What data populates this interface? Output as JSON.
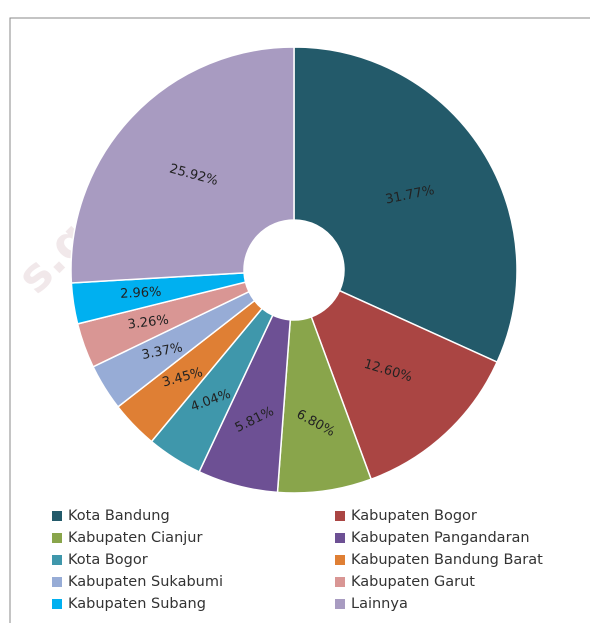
{
  "watermark": "s.go.id",
  "chart_data": {
    "type": "donut",
    "categories": [
      "Kota Bandung",
      "Kabupaten Bogor",
      "Kabupaten Cianjur",
      "Kabupaten Pangandaran",
      "Kota Bogor",
      "Kabupaten Bandung Barat",
      "Kabupaten Sukabumi",
      "Kabupaten Garut",
      "Kabupaten Subang",
      "Lainnya"
    ],
    "values": [
      31.77,
      12.6,
      6.8,
      5.81,
      4.04,
      3.45,
      3.37,
      3.26,
      2.96,
      25.92
    ],
    "value_labels": [
      "31.77%",
      "12.60%",
      "6.80%",
      "5.81%",
      "4.04%",
      "3.45%",
      "3.37%",
      "3.26%",
      "2.96%",
      "25.92%"
    ],
    "colors": [
      "#235a6a",
      "#aa4543",
      "#89a54b",
      "#6d5094",
      "#3f97ab",
      "#df7f34",
      "#97acd6",
      "#d99694",
      "#00b0f0",
      "#a89bc1"
    ],
    "legend": "bottom"
  }
}
